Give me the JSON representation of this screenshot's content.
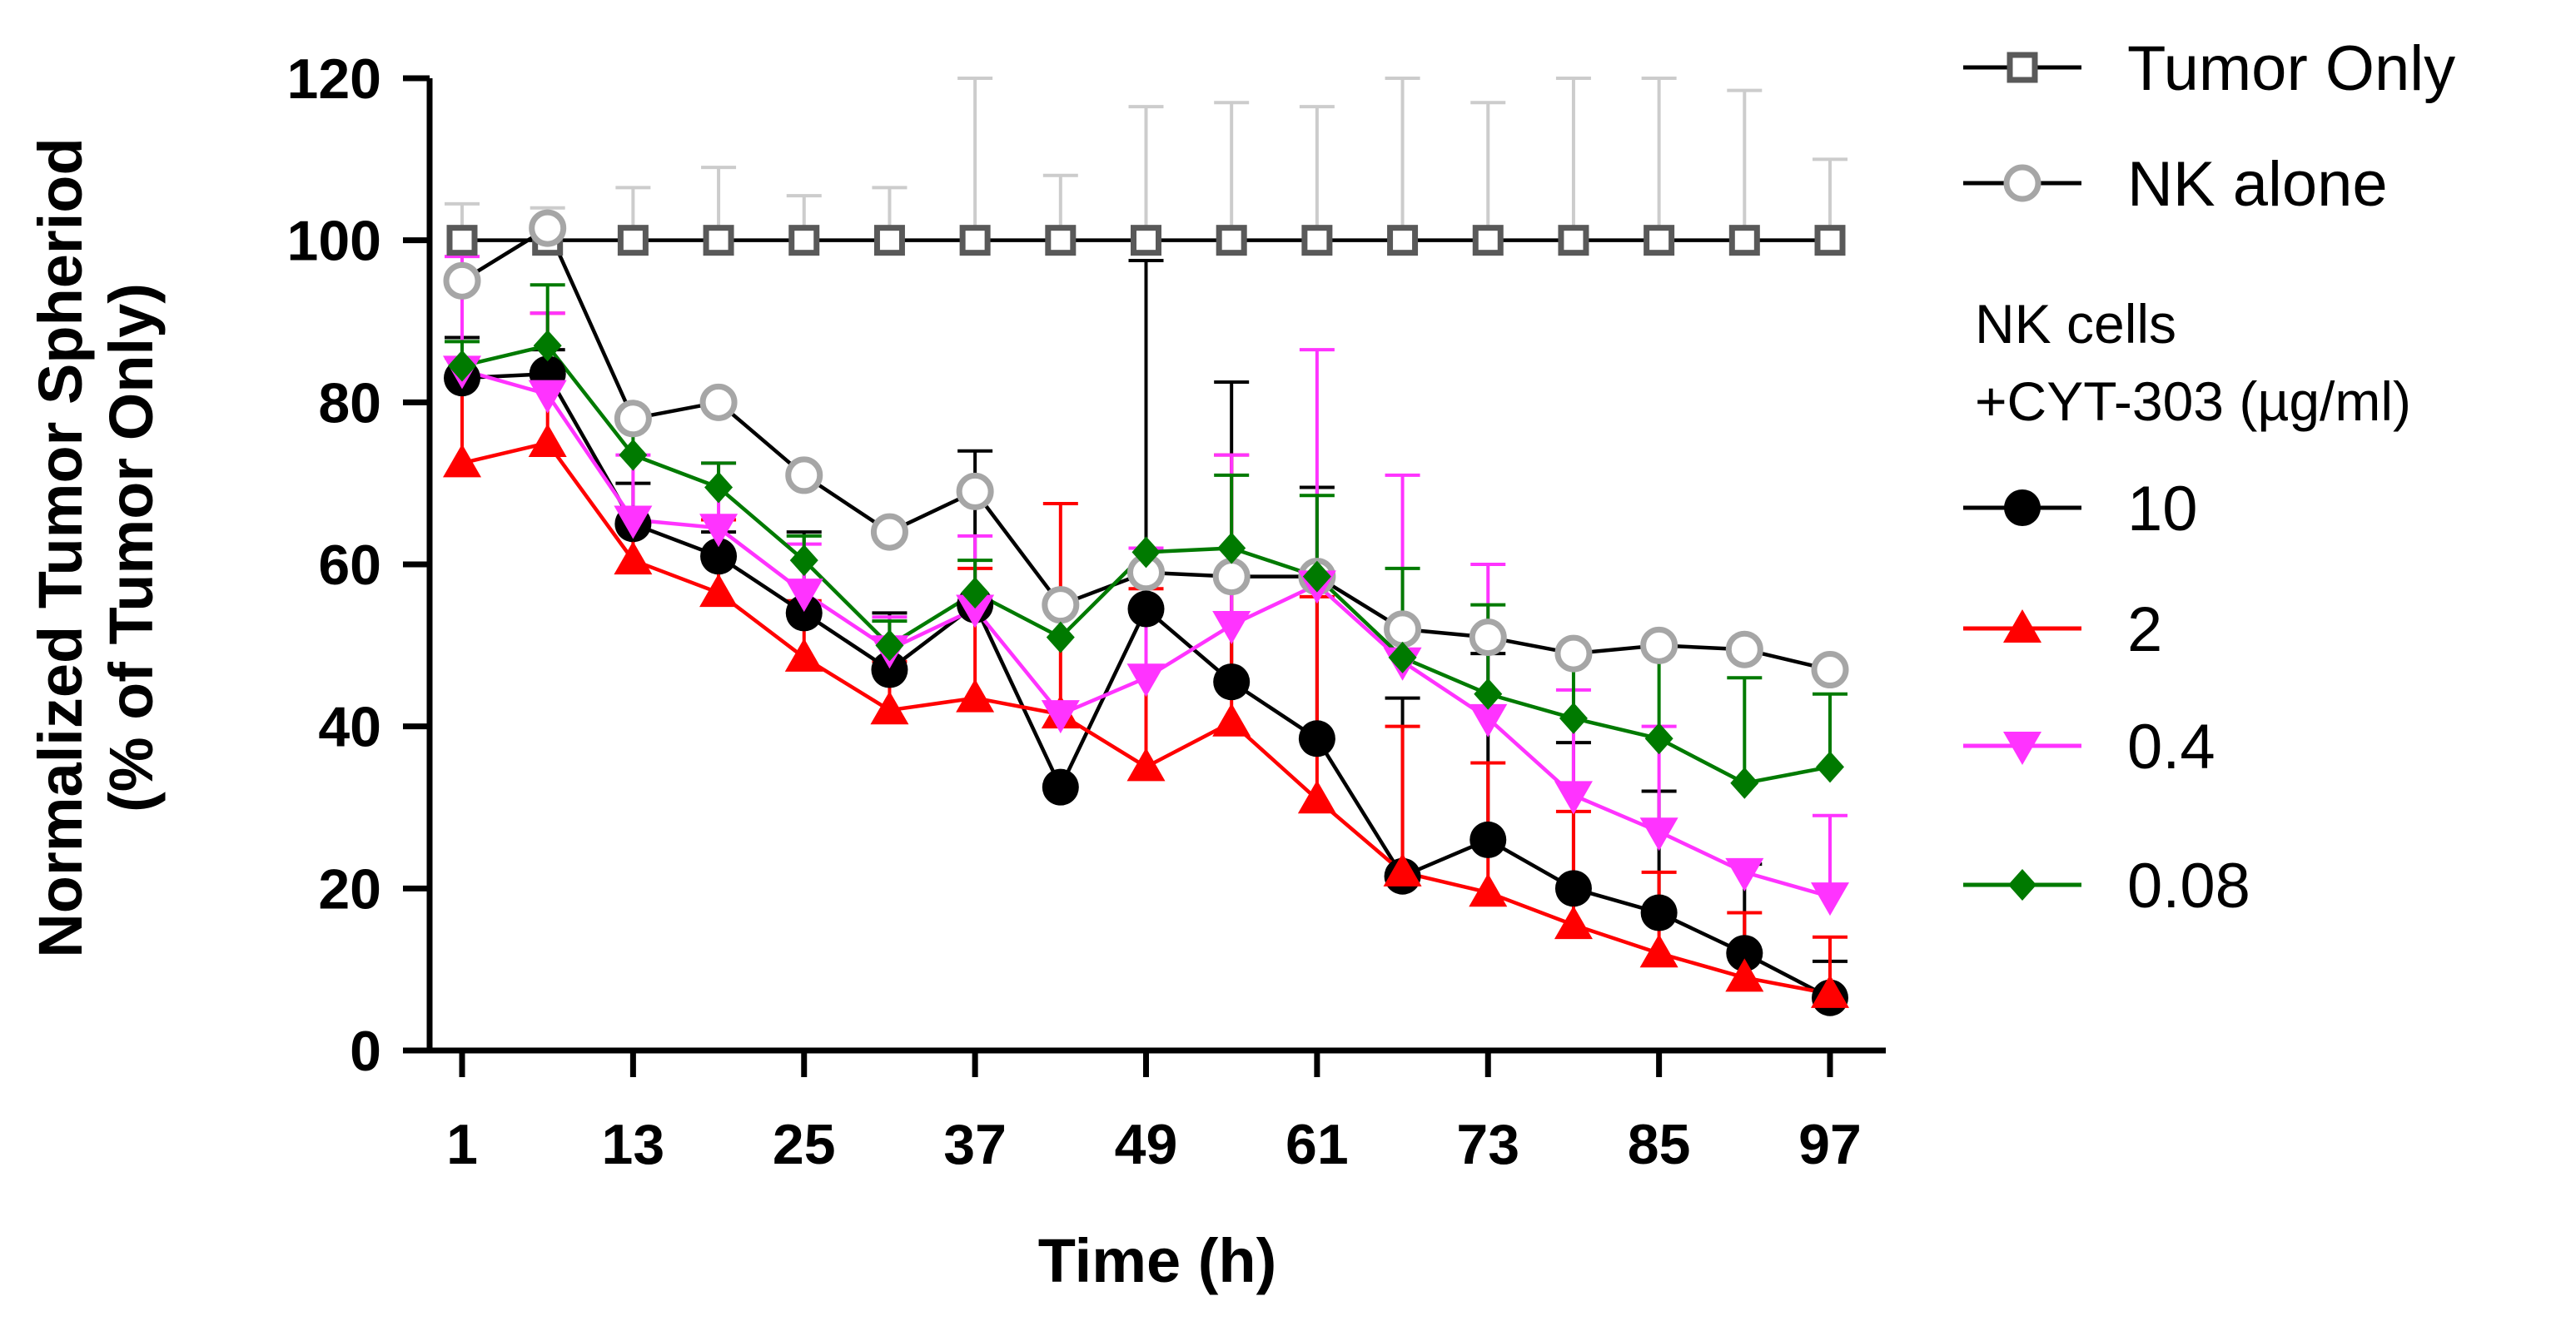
{
  "chart_data": {
    "type": "line",
    "title": "",
    "xlabel": "Time (h)",
    "ylabel": "Normalized Tumor Spheriod",
    "ylabel_sub": "(% of Tumor Only)",
    "xlim": [
      1,
      97
    ],
    "ylim": [
      0,
      120
    ],
    "x_ticks": [
      1,
      13,
      25,
      37,
      49,
      61,
      73,
      85,
      97
    ],
    "y_ticks": [
      0,
      20,
      40,
      60,
      80,
      100,
      120
    ],
    "grid": false,
    "legend_position": "right",
    "legend_group_heading": [
      "NK cells",
      "+CYT-303 (µg/ml)"
    ],
    "x": [
      1,
      7,
      13,
      19,
      25,
      31,
      37,
      43,
      49,
      55,
      61,
      67,
      73,
      79,
      85,
      91,
      97
    ],
    "series": [
      {
        "name": "Tumor Only",
        "marker": "open-square",
        "color": "#595959",
        "line_color": "#000000",
        "error_color": "#cccccc",
        "values": [
          100,
          100,
          100,
          100,
          100,
          100,
          100,
          100,
          100,
          100,
          100,
          100,
          100,
          100,
          100,
          100,
          100
        ],
        "error_upper": [
          4.5,
          4,
          6.5,
          9,
          5.5,
          6.5,
          20,
          8,
          16.5,
          17,
          16.5,
          20,
          17,
          20,
          20,
          18.5,
          10
        ]
      },
      {
        "name": "NK alone",
        "marker": "open-circle",
        "color": "#a6a6a6",
        "line_color": "#000000",
        "error_color": "#a6a6a6",
        "values": [
          95,
          101.5,
          78,
          80,
          71,
          64,
          69,
          55,
          59,
          58.5,
          58.5,
          52,
          51,
          49,
          50,
          49.5,
          47
        ],
        "error_upper": [
          0,
          0,
          0,
          0,
          0,
          0,
          0,
          0,
          0,
          0,
          0,
          0,
          0,
          0,
          0,
          0,
          0
        ]
      },
      {
        "name": "10",
        "marker": "filled-circle",
        "color": "#000000",
        "line_color": "#000000",
        "error_color": "#000000",
        "values": [
          83,
          83.5,
          65,
          61,
          54,
          47,
          55,
          32.5,
          54.5,
          45.5,
          38.5,
          21.5,
          26,
          20,
          17,
          12,
          6.5
        ],
        "error_upper": [
          5,
          3,
          5,
          3,
          10,
          7,
          19,
          0,
          43,
          37,
          31,
          22,
          23,
          18,
          15,
          11,
          4.5
        ]
      },
      {
        "name": "2",
        "marker": "filled-triangle-up",
        "color": "#ff0000",
        "line_color": "#ff0000",
        "error_color": "#ff0000",
        "values": [
          72.5,
          75,
          60.5,
          56.5,
          48.5,
          42,
          43.5,
          41.5,
          35,
          40.5,
          31,
          22,
          19.5,
          15.5,
          12,
          9,
          7
        ],
        "error_upper": [
          13,
          16,
          5,
          9,
          7,
          6,
          16,
          26,
          22,
          33,
          25,
          18,
          16,
          14,
          10,
          8,
          7
        ]
      },
      {
        "name": "0.4",
        "marker": "filled-triangle-down",
        "color": "#ff33ff",
        "line_color": "#ff33ff",
        "error_color": "#ff33ff",
        "values": [
          84,
          81,
          65.5,
          64.5,
          56.5,
          49.5,
          54.5,
          41.5,
          46,
          52.5,
          57.5,
          48,
          41,
          31.5,
          27,
          22,
          19
        ],
        "error_upper": [
          14,
          10,
          8,
          8,
          6,
          4,
          9,
          0,
          16,
          21,
          29,
          23,
          19,
          13,
          13,
          0,
          10
        ]
      },
      {
        "name": "0.08",
        "marker": "filled-diamond",
        "color": "#007a00",
        "line_color": "#007a00",
        "error_color": "#007a00",
        "values": [
          84.5,
          87,
          73.5,
          69.5,
          60.5,
          50,
          56.5,
          51,
          61.5,
          62,
          58.5,
          48.5,
          44,
          41,
          38.5,
          33,
          35
        ],
        "error_upper": [
          3,
          7.5,
          5,
          3,
          3,
          3,
          4,
          0,
          0,
          9,
          10,
          11,
          11,
          8,
          12,
          13,
          9
        ]
      }
    ]
  }
}
